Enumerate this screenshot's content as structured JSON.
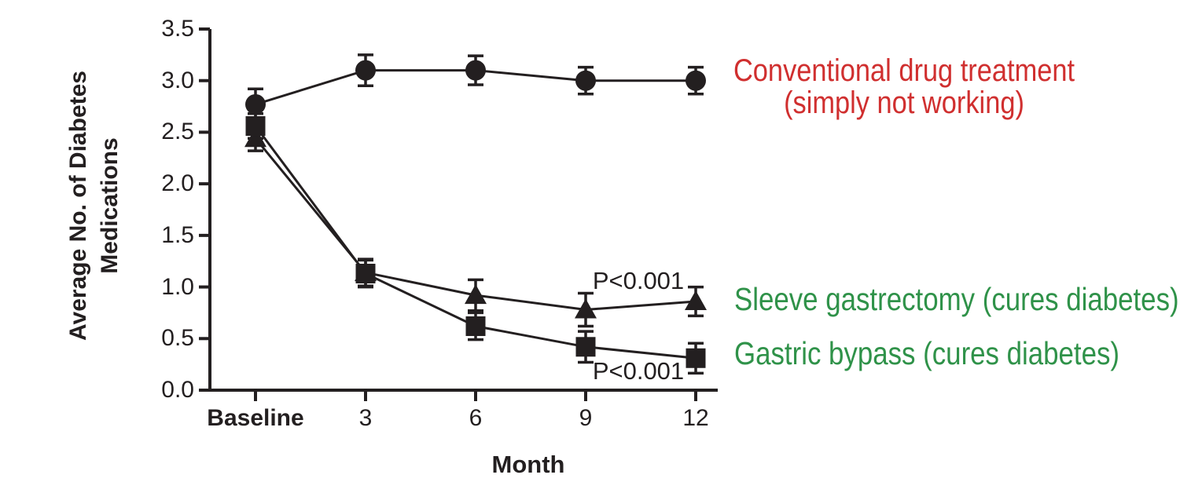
{
  "chart_data": {
    "type": "line",
    "xlabel": "Month",
    "ylabel_lines": [
      "Average No. of Diabetes",
      "Medications"
    ],
    "x_categories": [
      "Baseline",
      "3",
      "6",
      "9",
      "12"
    ],
    "ylim": [
      0.0,
      3.5
    ],
    "ytick_labels": [
      "0.0",
      "0.5",
      "1.0",
      "1.5",
      "2.0",
      "2.5",
      "3.0",
      "3.5"
    ],
    "grid": false,
    "series": [
      {
        "name": "Conventional drug treatment",
        "marker": "circle",
        "values": [
          2.77,
          3.1,
          3.1,
          3.0,
          3.0
        ],
        "errors": [
          0.15,
          0.15,
          0.14,
          0.13,
          0.13
        ]
      },
      {
        "name": "Sleeve gastrectomy",
        "marker": "triangle",
        "values": [
          2.44,
          1.14,
          0.92,
          0.78,
          0.86
        ],
        "errors": [
          0.12,
          0.13,
          0.15,
          0.16,
          0.14
        ]
      },
      {
        "name": "Gastric bypass",
        "marker": "square",
        "values": [
          2.56,
          1.13,
          0.62,
          0.42,
          0.31
        ],
        "errors": [
          0.12,
          0.13,
          0.13,
          0.15,
          0.145
        ]
      }
    ],
    "annotations": [
      {
        "text": "P<0.001"
      },
      {
        "text": "P<0.001"
      }
    ]
  },
  "legend": {
    "conventional_line1": "Conventional drug treatment",
    "conventional_line2": "(simply not working)",
    "conventional_color": "#d02f2f",
    "sleeve_label": "Sleeve gastrectomy (cures diabetes)",
    "bypass_label": "Gastric bypass (cures diabetes)",
    "surgery_color": "#2f9249"
  },
  "colors": {
    "axis": "#231f20",
    "background": "#ffffff"
  }
}
